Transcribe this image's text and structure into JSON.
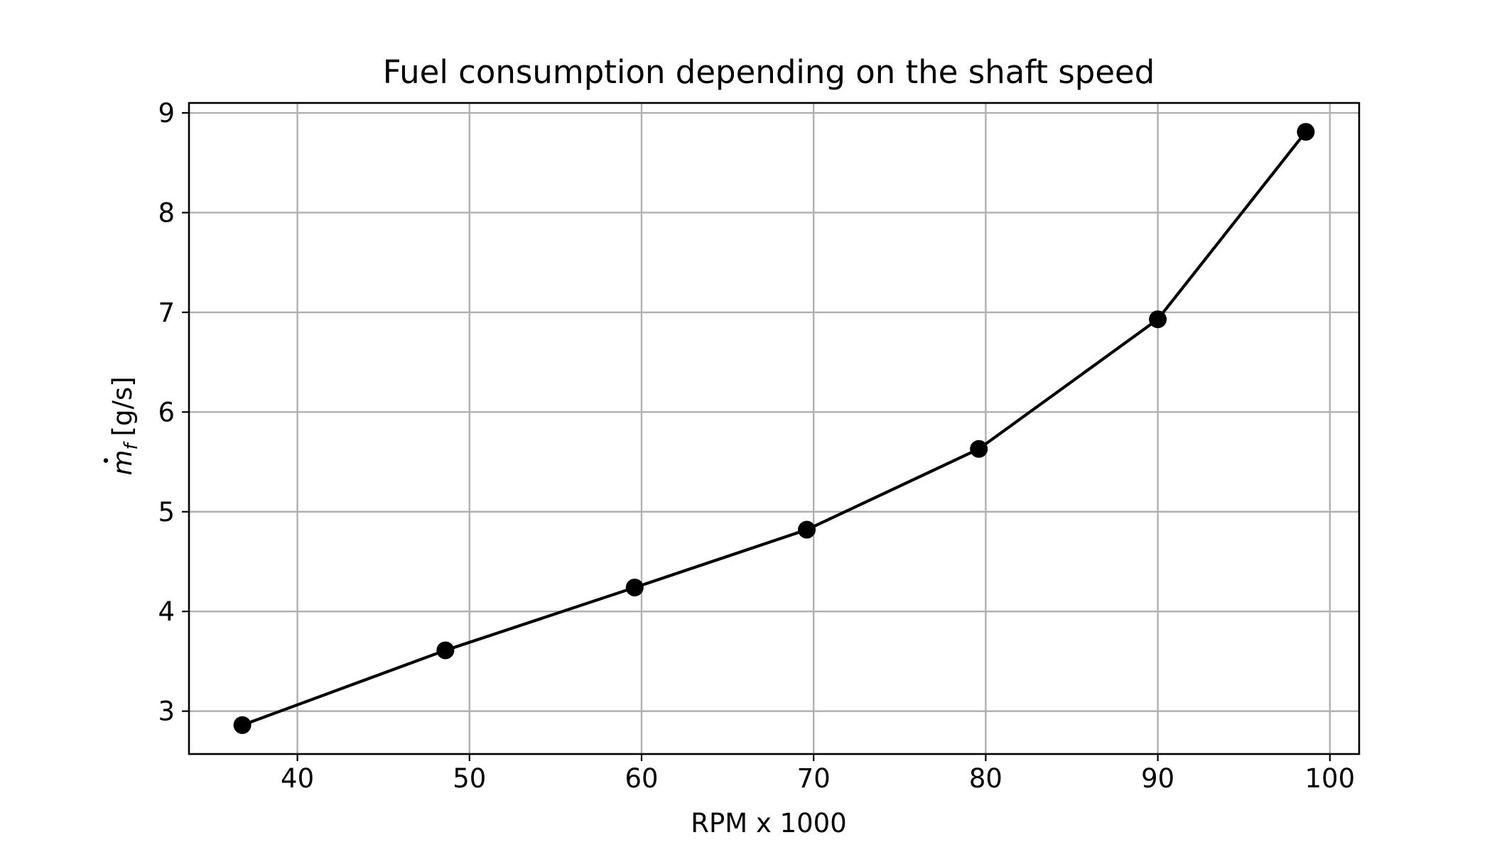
{
  "chart_data": {
    "type": "line",
    "title": "Fuel consumption depending on the shaft speed",
    "xlabel": "RPM x 1000",
    "ylabel": {
      "symbol": "m",
      "subscript": "f",
      "unit": "[g/s]"
    },
    "xlim": [
      33.7,
      101.7
    ],
    "ylim": [
      2.57,
      9.1
    ],
    "xticks": [
      40,
      50,
      60,
      70,
      80,
      90,
      100
    ],
    "yticks": [
      3,
      4,
      5,
      6,
      7,
      8,
      9
    ],
    "grid": true,
    "line_color": "#000000",
    "grid_color": "#b0b0b0",
    "series": [
      {
        "x": [
          36.8,
          48.6,
          59.6,
          69.6,
          79.6,
          90.0,
          98.6
        ],
        "y": [
          2.86,
          3.61,
          4.24,
          4.82,
          5.63,
          6.93,
          8.81
        ]
      }
    ]
  }
}
